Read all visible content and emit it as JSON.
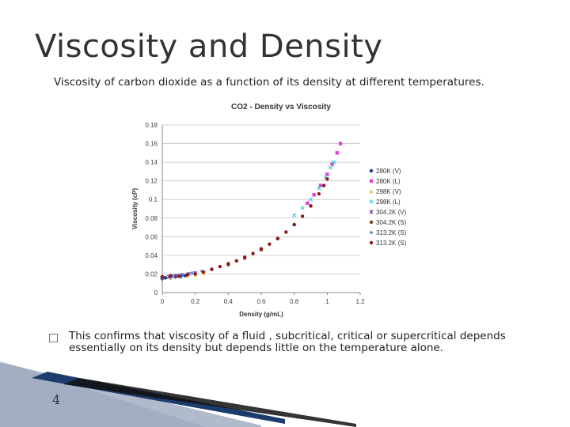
{
  "slide": {
    "title": "Viscosity and Density",
    "subtitle": "Viscosity of carbon dioxide as a function of its density at different temperatures.",
    "bullet": "This confirms that viscosity of a fluid , subcritical, critical or supercritical depends essentially on its density but depends little on the temperature alone.",
    "page_number": "4"
  },
  "chart_data": {
    "type": "scatter",
    "title": "CO2 - Density vs Viscosity",
    "xlabel": "Density (g/mL)",
    "ylabel": "Viscosity (cP)",
    "xlim": [
      0,
      1.2
    ],
    "ylim": [
      0,
      0.18
    ],
    "xticks": [
      "0",
      "0.2",
      "0.4",
      "0.6",
      "0.8",
      "1",
      "1.2"
    ],
    "yticks": [
      "0",
      "0.02",
      "0.04",
      "0.06",
      "0.08",
      "0.1",
      "0.12",
      "0.14",
      "0.16",
      "0.18"
    ],
    "grid": "horizontal",
    "legend_position": "right",
    "series": [
      {
        "name": "280K (V)",
        "color": "#1f3a93",
        "marker": "diamond",
        "points": [
          [
            0.0,
            0.015
          ],
          [
            0.02,
            0.016
          ],
          [
            0.05,
            0.016
          ],
          [
            0.08,
            0.017
          ],
          [
            0.11,
            0.017
          ],
          [
            0.14,
            0.018
          ]
        ]
      },
      {
        "name": "280K (L)",
        "color": "#e040e0",
        "marker": "square",
        "points": [
          [
            0.88,
            0.096
          ],
          [
            0.92,
            0.105
          ],
          [
            0.96,
            0.115
          ],
          [
            1.0,
            0.127
          ],
          [
            1.03,
            0.138
          ],
          [
            1.06,
            0.15
          ],
          [
            1.08,
            0.16
          ]
        ]
      },
      {
        "name": "298K (V)",
        "color": "#e0c030",
        "marker": "triangle",
        "points": [
          [
            0.0,
            0.016
          ],
          [
            0.05,
            0.016
          ],
          [
            0.1,
            0.017
          ],
          [
            0.15,
            0.018
          ],
          [
            0.2,
            0.019
          ],
          [
            0.25,
            0.021
          ]
        ]
      },
      {
        "name": "298K (L)",
        "color": "#40d0e0",
        "marker": "x",
        "points": [
          [
            0.8,
            0.083
          ],
          [
            0.85,
            0.091
          ],
          [
            0.9,
            0.1
          ],
          [
            0.95,
            0.112
          ],
          [
            0.99,
            0.124
          ],
          [
            1.02,
            0.134
          ],
          [
            1.04,
            0.14
          ]
        ]
      },
      {
        "name": "304.2K (V)",
        "color": "#7030a0",
        "marker": "star",
        "points": [
          [
            0.0,
            0.016
          ],
          [
            0.04,
            0.017
          ],
          [
            0.08,
            0.018
          ],
          [
            0.12,
            0.019
          ],
          [
            0.16,
            0.02
          ],
          [
            0.2,
            0.021
          ]
        ]
      },
      {
        "name": "304.2K (S)",
        "color": "#8a3a1a",
        "marker": "circle",
        "points": [
          [
            0.3,
            0.025
          ],
          [
            0.4,
            0.03
          ],
          [
            0.5,
            0.037
          ],
          [
            0.6,
            0.046
          ],
          [
            0.7,
            0.058
          ],
          [
            0.8,
            0.073
          ],
          [
            0.9,
            0.093
          ]
        ]
      },
      {
        "name": "313.2K (S)",
        "color": "#3070c0",
        "marker": "plus",
        "points": [
          [
            0.0,
            0.017
          ],
          [
            0.06,
            0.018
          ],
          [
            0.12,
            0.019
          ],
          [
            0.18,
            0.021
          ],
          [
            0.24,
            0.023
          ]
        ]
      },
      {
        "name": "313.2K (S)",
        "color": "#8b1a1a",
        "marker": "circle",
        "points": [
          [
            0.0,
            0.017
          ],
          [
            0.05,
            0.018
          ],
          [
            0.1,
            0.018
          ],
          [
            0.15,
            0.019
          ],
          [
            0.2,
            0.02
          ],
          [
            0.25,
            0.022
          ],
          [
            0.3,
            0.025
          ],
          [
            0.35,
            0.028
          ],
          [
            0.4,
            0.031
          ],
          [
            0.45,
            0.034
          ],
          [
            0.5,
            0.038
          ],
          [
            0.55,
            0.042
          ],
          [
            0.6,
            0.047
          ],
          [
            0.65,
            0.052
          ],
          [
            0.7,
            0.058
          ],
          [
            0.75,
            0.065
          ],
          [
            0.8,
            0.073
          ],
          [
            0.85,
            0.082
          ],
          [
            0.9,
            0.093
          ],
          [
            0.95,
            0.106
          ],
          [
            0.98,
            0.115
          ],
          [
            1.0,
            0.122
          ]
        ]
      }
    ]
  }
}
